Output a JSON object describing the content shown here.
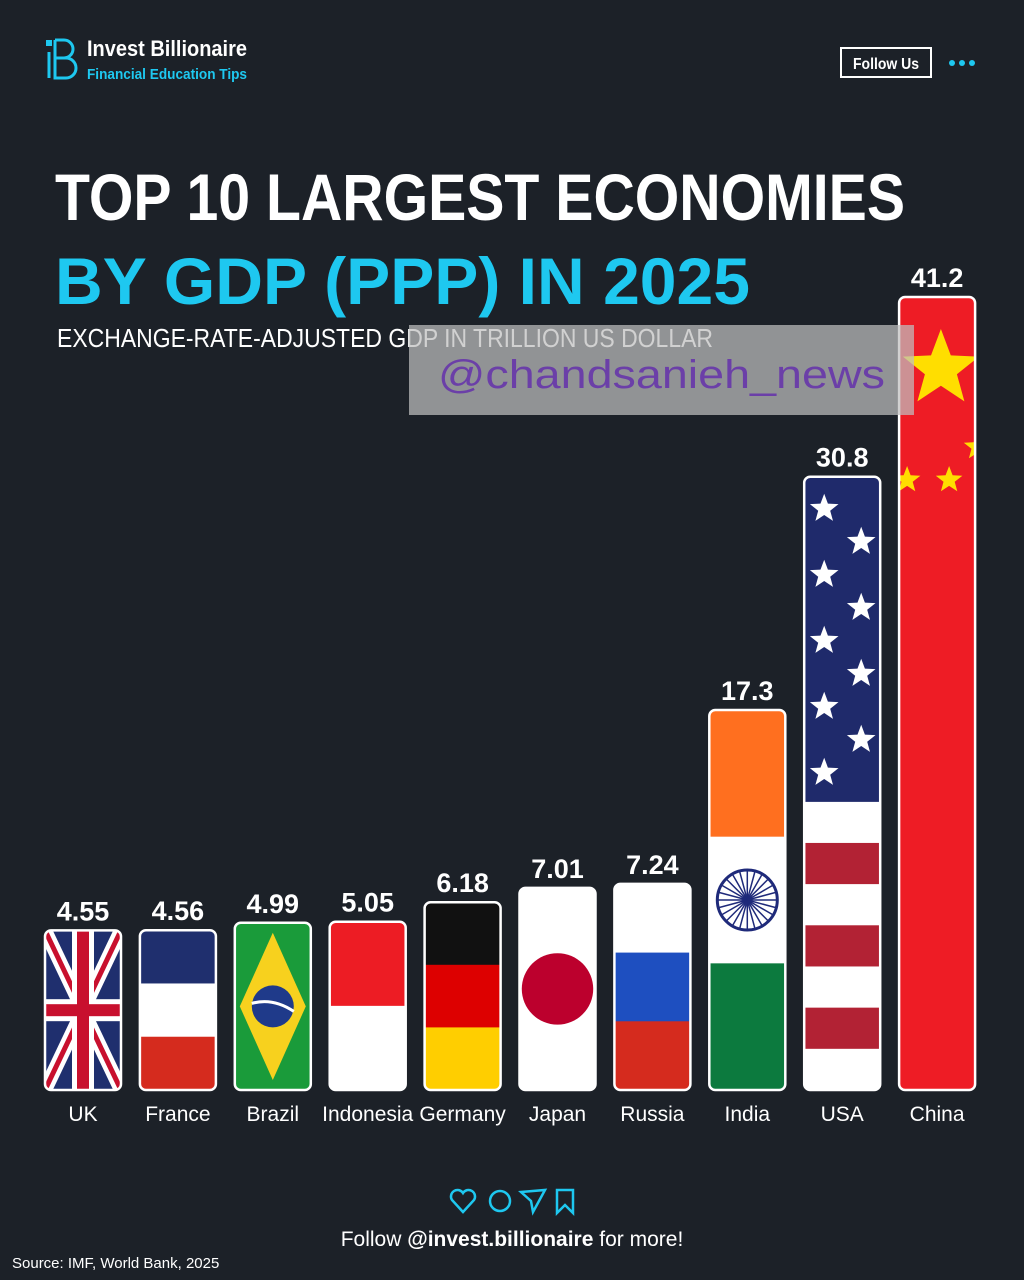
{
  "header": {
    "brand": "Invest Billionaire",
    "tagline": "Financial Education Tips",
    "follow_button": "Follow Us"
  },
  "watermark": "@chandsanieh_news",
  "chart_data": {
    "type": "bar",
    "title": "TOP 10 LARGEST ECONOMIES",
    "title_highlight": "BY GDP (PPP) IN 2025",
    "subtitle": "EXCHANGE-RATE-ADJUSTED GDP IN TRILLION US DOLLAR",
    "categories": [
      "UK",
      "France",
      "Brazil",
      "Indonesia",
      "Germany",
      "Japan",
      "Russia",
      "India",
      "USA",
      "China"
    ],
    "values": [
      4.55,
      4.56,
      4.99,
      5.05,
      6.18,
      7.01,
      7.24,
      17.3,
      30.8,
      41.2
    ],
    "colors": [
      "#1f2f6e",
      "#1f2f6e",
      "#1a9b3a",
      "#ed1c24",
      "#111111",
      "#ffffff",
      "#ffffff",
      "#ff6f1f",
      "#1f2a6b",
      "#ee1c25"
    ],
    "source": "Source: IMF, World Bank, 2025"
  },
  "footer": {
    "follow_prefix": "Follow",
    "handle": "@invest.billionaire",
    "follow_suffix": "for more!"
  }
}
